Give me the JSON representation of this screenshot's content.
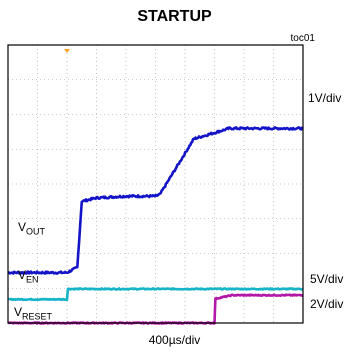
{
  "title": "STARTUP",
  "figure_id": "toc01",
  "timebase": "400µs/div",
  "chart_data": {
    "type": "line",
    "title": "STARTUP",
    "xlabel": "400µs/div",
    "x_unit": "div",
    "xlim": [
      0,
      10
    ],
    "ylim": [
      0,
      8
    ],
    "grid": true,
    "trigger_marker_color": "#f5a623",
    "series": [
      {
        "name": "VOUT",
        "label_main": "V",
        "label_sub": "OUT",
        "scale": "1V/div",
        "color": "#1414c8",
        "x": [
          0,
          2.0,
          2.35,
          2.5,
          3.0,
          4.0,
          5.0,
          5.15,
          6.3,
          7.5,
          8.5,
          10
        ],
        "y": [
          1.45,
          1.45,
          1.6,
          3.5,
          3.6,
          3.65,
          3.65,
          3.7,
          5.3,
          5.6,
          5.6,
          5.6
        ],
        "noise": 0.06
      },
      {
        "name": "VEN",
        "label_main": "V",
        "label_sub": "EN",
        "scale": "5V/div",
        "color": "#17b4c8",
        "x": [
          0,
          2.0,
          2.03,
          10
        ],
        "y": [
          0.68,
          0.68,
          0.98,
          0.98
        ],
        "noise": 0.03
      },
      {
        "name": "VRESET",
        "label_main": "V",
        "label_sub": "RESET",
        "scale": "2V/div",
        "color": "#b418a8",
        "x": [
          0,
          7.0,
          7.03,
          7.6,
          10
        ],
        "y": [
          0.0,
          0.0,
          0.7,
          0.8,
          0.8
        ],
        "noise": 0.03
      }
    ]
  }
}
